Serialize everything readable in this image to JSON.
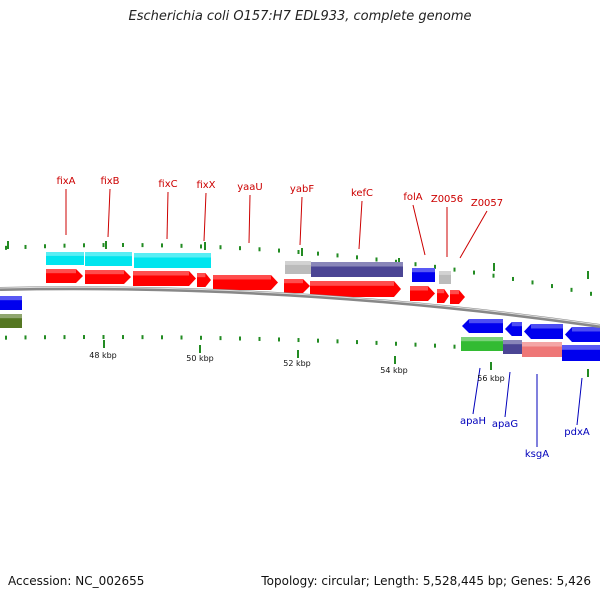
{
  "header": {
    "title": "Escherichia coli O157:H7 EDL933, complete genome"
  },
  "footer": {
    "accession": "Accession: NC_002655",
    "summary": "Topology: circular; Length: 5,528,445 bp; Genes: 5,426"
  },
  "scale_labels": [
    "48 kbp",
    "50 kbp",
    "52 kbp",
    "54 kbp",
    "56 kbp"
  ],
  "forward_genes": [
    "fixA",
    "fixB",
    "fixC",
    "fixX",
    "yaaU",
    "yabF",
    "kefC",
    "folA",
    "Z0056",
    "Z0057"
  ],
  "reverse_genes": [
    "apaH",
    "apaG",
    "ksgA",
    "pdxA"
  ],
  "colors": {
    "forward_label": "#cc0000",
    "reverse_label": "#0000bb",
    "cds": "#ff0000",
    "cds_reverse": "#0000ee",
    "cyan": "#00e5ee",
    "slate": "#4b4594",
    "gray": "#bbbbbb",
    "green": "#33bb33",
    "salmon": "#ee7777",
    "olive": "#557722",
    "tick": "#228B22",
    "backbone": "#888888"
  }
}
